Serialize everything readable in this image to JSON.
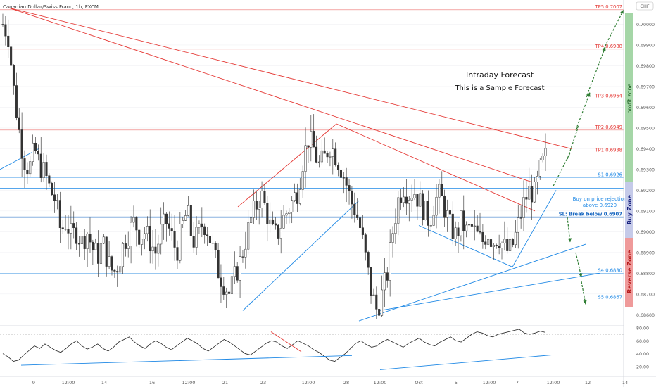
{
  "header": {
    "title": "Canadian Dollar/Swiss Franc, 1h, FXCM",
    "currency_badge": "CHF"
  },
  "annotation": {
    "line1": "Intraday Forecast",
    "line2": "This is a Sample Forecast"
  },
  "zones": {
    "profit": {
      "label": "profit zone",
      "color": "#a5d6a7"
    },
    "buy": {
      "label": "Buy Zone",
      "color": "#c5cae9"
    },
    "reverse": {
      "label": "Reverse Zone",
      "color": "#ef9a9a"
    }
  },
  "buy_note": {
    "line1": "Buy on price rejection",
    "line2": "above 0.6920"
  },
  "price_axis": {
    "min": 0.6855,
    "max": 0.701,
    "ticks": [
      "0.70100",
      "0.70000",
      "0.69900",
      "0.69800",
      "0.69700",
      "0.69600",
      "0.69500",
      "0.69400",
      "0.69300",
      "0.69200",
      "0.69100",
      "0.69000",
      "0.68900",
      "0.68800",
      "0.68700",
      "0.68600"
    ]
  },
  "rsi_axis": {
    "min": 10,
    "max": 80,
    "ticks": [
      "80.00",
      "60.00",
      "40.00",
      "20.00"
    ]
  },
  "time_axis": {
    "labels": [
      "9",
      "12:00",
      "14",
      "16",
      "12:00",
      "21",
      "23",
      "12:00",
      "28",
      "12:00",
      "Oct",
      "5",
      "12:00",
      "7",
      "12:00",
      "12",
      "14"
    ]
  },
  "chart_data": {
    "type": "candlestick",
    "title": "Canadian Dollar/Swiss Franc, 1h, FXCM",
    "y_range": [
      0.6855,
      0.701
    ],
    "levels": [
      {
        "label": "TP5",
        "value": "0.7007",
        "color": "#e53935"
      },
      {
        "label": "TP4",
        "value": "0.6988",
        "color": "#e53935"
      },
      {
        "label": "TP3",
        "value": "0.6964",
        "color": "#e53935"
      },
      {
        "label": "TP2",
        "value": "0.6949",
        "color": "#e53935"
      },
      {
        "label": "TP1",
        "value": "0.6938",
        "color": "#e53935"
      },
      {
        "label": "S1",
        "value": "0.6926",
        "color": "#1e88e5"
      },
      {
        "label": "SL: Break below",
        "value": "0.6907",
        "color": "#1565c0"
      },
      {
        "label": "S4",
        "value": "0.6880",
        "color": "#1e88e5"
      },
      {
        "label": "S5",
        "value": "0.6867",
        "color": "#1e88e5"
      }
    ],
    "price_path": [
      0.7,
      0.6995,
      0.697,
      0.695,
      0.6935,
      0.693,
      0.694,
      0.6932,
      0.6928,
      0.692,
      0.6915,
      0.69,
      0.6905,
      0.6898,
      0.69,
      0.6895,
      0.69,
      0.6892,
      0.6888,
      0.6895,
      0.6885,
      0.688,
      0.6885,
      0.6895,
      0.69,
      0.6905,
      0.6898,
      0.69,
      0.6895,
      0.689,
      0.69,
      0.6905,
      0.6898,
      0.689,
      0.6902,
      0.691,
      0.6895,
      0.6898,
      0.6905,
      0.69,
      0.689,
      0.688,
      0.6875,
      0.687,
      0.6878,
      0.6885,
      0.6895,
      0.6905,
      0.6912,
      0.6918,
      0.691,
      0.69,
      0.6898,
      0.6905,
      0.691,
      0.6915,
      0.692,
      0.6935,
      0.6945,
      0.694,
      0.6932,
      0.6935,
      0.6942,
      0.6938,
      0.6932,
      0.6925,
      0.6915,
      0.691,
      0.69,
      0.6885,
      0.687,
      0.6862,
      0.687,
      0.688,
      0.69,
      0.6915,
      0.6922,
      0.6918,
      0.692,
      0.6915,
      0.691,
      0.6905,
      0.6915,
      0.6918,
      0.691,
      0.6902,
      0.6898,
      0.6905,
      0.69,
      0.6902,
      0.6898,
      0.6895,
      0.69,
      0.6895,
      0.6898,
      0.6893,
      0.689,
      0.6895,
      0.6905,
      0.6915,
      0.692,
      0.6918,
      0.693,
      0.6936
    ],
    "rsi_path": [
      40,
      35,
      28,
      30,
      38,
      45,
      52,
      48,
      55,
      50,
      45,
      42,
      48,
      55,
      60,
      52,
      47,
      50,
      55,
      48,
      44,
      50,
      58,
      62,
      66,
      58,
      52,
      48,
      55,
      60,
      56,
      50,
      46,
      52,
      58,
      64,
      60,
      55,
      48,
      44,
      50,
      56,
      62,
      58,
      52,
      46,
      40,
      38,
      44,
      50,
      56,
      60,
      58,
      52,
      48,
      54,
      60,
      56,
      52,
      46,
      42,
      36,
      30,
      28,
      34,
      40,
      48,
      56,
      60,
      54,
      50,
      52,
      58,
      62,
      58,
      54,
      50,
      56,
      60,
      64,
      58,
      54,
      52,
      58,
      62,
      66,
      60,
      58,
      64,
      70,
      74,
      72,
      68,
      66,
      70,
      72,
      74,
      76,
      78,
      72,
      70,
      72,
      75,
      73
    ]
  }
}
